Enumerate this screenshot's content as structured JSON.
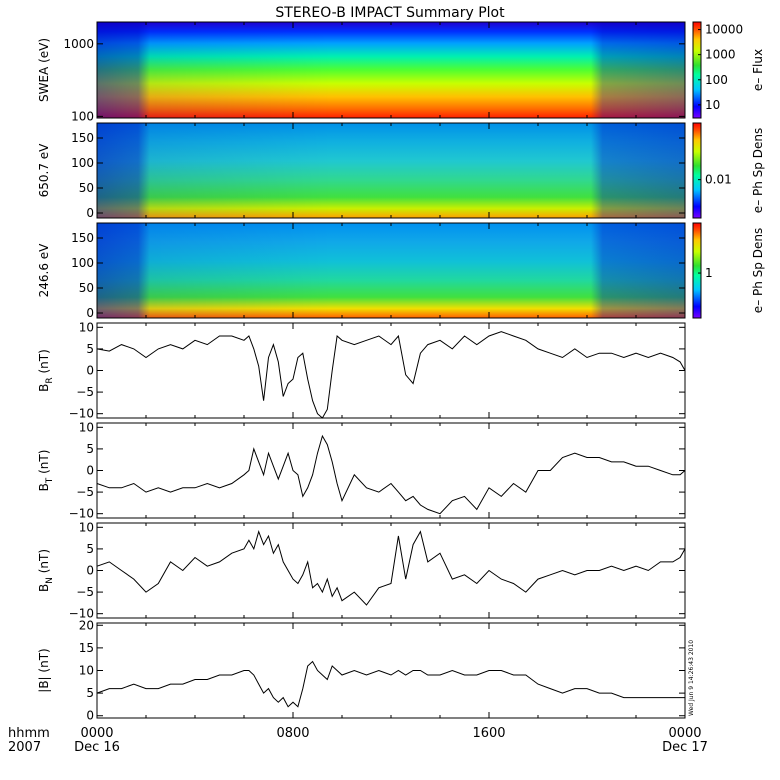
{
  "title": "STEREO-B IMPACT Summary Plot",
  "timestamp": "Wed Jun  9 14:26:43 2010",
  "x_axis": {
    "row1_label": "hhmm",
    "row2_label": "2007",
    "ticks": [
      {
        "hour": 0,
        "label": "0000",
        "sublabel": "Dec 16"
      },
      {
        "hour": 8,
        "label": "0800",
        "sublabel": ""
      },
      {
        "hour": 16,
        "label": "1600",
        "sublabel": ""
      },
      {
        "hour": 24,
        "label": "0000",
        "sublabel": "Dec 17"
      }
    ],
    "xlim": [
      0,
      24
    ]
  },
  "colors": {
    "line": "#000000",
    "axis": "#000000",
    "spectrogram_low": "#0000ff",
    "spectrogram_high": "#ff0000"
  },
  "chart_data": [
    {
      "type": "heatmap",
      "ylabel": "SWEA (eV)",
      "yscale": "log",
      "ylim": [
        95,
        2000
      ],
      "yticks": [
        {
          "value": 100,
          "label": "100"
        },
        {
          "value": 1000,
          "label": "1000"
        }
      ],
      "colorbar": {
        "label": "e– Flux",
        "scale": "log",
        "range": [
          3,
          20000
        ],
        "ticks": [
          {
            "value": 10,
            "label": "10"
          },
          {
            "value": 100,
            "label": "100"
          },
          {
            "value": 1000,
            "label": "1000"
          },
          {
            "value": 10000,
            "label": "10000"
          }
        ]
      }
    },
    {
      "type": "heatmap",
      "ylabel": "650.7 eV",
      "ylim": [
        -10,
        180
      ],
      "yticks": [
        {
          "value": 0,
          "label": "0"
        },
        {
          "value": 50,
          "label": "50"
        },
        {
          "value": 100,
          "label": "100"
        },
        {
          "value": 150,
          "label": "150"
        }
      ],
      "colorbar": {
        "label": "e– Ph Sp Dens",
        "scale": "log",
        "range": [
          0.001,
          0.3
        ],
        "ticks": [
          {
            "value": 0.01,
            "label": "0.01"
          }
        ]
      }
    },
    {
      "type": "heatmap",
      "ylabel": "246.6 eV",
      "ylim": [
        -10,
        180
      ],
      "yticks": [
        {
          "value": 0,
          "label": "0"
        },
        {
          "value": 50,
          "label": "50"
        },
        {
          "value": 100,
          "label": "100"
        },
        {
          "value": 150,
          "label": "150"
        }
      ],
      "colorbar": {
        "label": "e– Ph Sp Dens",
        "scale": "log",
        "range": [
          0.2,
          6
        ],
        "ticks": [
          {
            "value": 1,
            "label": "1"
          }
        ]
      }
    },
    {
      "type": "line",
      "ylabel": "B",
      "ylabel_sub": "R",
      "ylabel_unit": "(nT)",
      "ylim": [
        -11,
        11
      ],
      "yticks": [
        {
          "value": -10,
          "label": "−10"
        },
        {
          "value": -5,
          "label": "−5"
        },
        {
          "value": 0,
          "label": "0"
        },
        {
          "value": 5,
          "label": "5"
        },
        {
          "value": 10,
          "label": "10"
        }
      ],
      "x": [
        0,
        0.5,
        1,
        1.5,
        2,
        2.5,
        3,
        3.5,
        4,
        4.5,
        5,
        5.5,
        6,
        6.2,
        6.4,
        6.6,
        6.8,
        7.0,
        7.2,
        7.4,
        7.6,
        7.8,
        8.0,
        8.2,
        8.4,
        8.6,
        8.8,
        9.0,
        9.2,
        9.4,
        9.6,
        9.8,
        10,
        10.5,
        11,
        11.5,
        12,
        12.3,
        12.6,
        12.9,
        13.2,
        13.5,
        14,
        14.5,
        15,
        15.5,
        16,
        16.5,
        17,
        17.5,
        18,
        18.5,
        19,
        19.5,
        20,
        20.5,
        21,
        21.5,
        22,
        22.5,
        23,
        23.5,
        23.8,
        24
      ],
      "y": [
        5,
        4.5,
        6,
        5,
        3,
        5,
        6,
        5,
        7,
        6,
        8,
        8,
        7,
        8,
        5,
        1,
        -7,
        3,
        6,
        2,
        -6,
        -3,
        -2,
        3,
        4,
        -2,
        -7,
        -10,
        -11,
        -9,
        0,
        8,
        7,
        6,
        7,
        8,
        6,
        8,
        -1,
        -3,
        4,
        6,
        7,
        5,
        8,
        6,
        8,
        9,
        8,
        7,
        5,
        4,
        3,
        5,
        3,
        4,
        4,
        3,
        4,
        3,
        4,
        3,
        2,
        0
      ]
    },
    {
      "type": "line",
      "ylabel": "B",
      "ylabel_sub": "T",
      "ylabel_unit": "(nT)",
      "ylim": [
        -11,
        11
      ],
      "yticks": [
        {
          "value": -10,
          "label": "−10"
        },
        {
          "value": -5,
          "label": "−5"
        },
        {
          "value": 0,
          "label": "0"
        },
        {
          "value": 5,
          "label": "5"
        },
        {
          "value": 10,
          "label": "10"
        }
      ],
      "x": [
        0,
        0.5,
        1,
        1.5,
        2,
        2.5,
        3,
        3.5,
        4,
        4.5,
        5,
        5.5,
        6,
        6.2,
        6.4,
        6.6,
        6.8,
        7.0,
        7.2,
        7.4,
        7.6,
        7.8,
        8.0,
        8.2,
        8.4,
        8.6,
        8.8,
        9.0,
        9.2,
        9.4,
        9.6,
        9.8,
        10,
        10.5,
        11,
        11.5,
        12,
        12.3,
        12.6,
        12.9,
        13.2,
        13.5,
        14,
        14.5,
        15,
        15.5,
        16,
        16.5,
        17,
        17.5,
        18,
        18.5,
        19,
        19.5,
        20,
        20.5,
        21,
        21.5,
        22,
        22.5,
        23,
        23.5,
        23.8,
        24
      ],
      "y": [
        -3,
        -4,
        -4,
        -3,
        -5,
        -4,
        -5,
        -4,
        -4,
        -3,
        -4,
        -3,
        -1,
        0,
        5,
        2,
        -1,
        4,
        1,
        -2,
        1,
        4,
        0,
        -1,
        -6,
        -4,
        -1,
        4,
        8,
        6,
        2,
        -3,
        -7,
        -1,
        -4,
        -5,
        -3,
        -5,
        -7,
        -6,
        -8,
        -9,
        -10,
        -7,
        -6,
        -9,
        -4,
        -6,
        -3,
        -5,
        0,
        0,
        3,
        4,
        3,
        3,
        2,
        2,
        1,
        1,
        0,
        -1,
        -1,
        0
      ]
    },
    {
      "type": "line",
      "ylabel": "B",
      "ylabel_sub": "N",
      "ylabel_unit": "(nT)",
      "ylim": [
        -11,
        11
      ],
      "yticks": [
        {
          "value": -10,
          "label": "−10"
        },
        {
          "value": -5,
          "label": "−5"
        },
        {
          "value": 0,
          "label": "0"
        },
        {
          "value": 5,
          "label": "5"
        },
        {
          "value": 10,
          "label": "10"
        }
      ],
      "x": [
        0,
        0.5,
        1,
        1.5,
        2,
        2.5,
        3,
        3.5,
        4,
        4.5,
        5,
        5.5,
        6,
        6.2,
        6.4,
        6.6,
        6.8,
        7.0,
        7.2,
        7.4,
        7.6,
        7.8,
        8.0,
        8.2,
        8.4,
        8.6,
        8.8,
        9.0,
        9.2,
        9.4,
        9.6,
        9.8,
        10,
        10.5,
        11,
        11.5,
        12,
        12.3,
        12.6,
        12.9,
        13.2,
        13.5,
        14,
        14.5,
        15,
        15.5,
        16,
        16.5,
        17,
        17.5,
        18,
        18.5,
        19,
        19.5,
        20,
        20.5,
        21,
        21.5,
        22,
        22.5,
        23,
        23.5,
        23.8,
        24
      ],
      "y": [
        1,
        2,
        0,
        -2,
        -5,
        -3,
        2,
        0,
        3,
        1,
        2,
        4,
        5,
        7,
        5,
        9,
        6,
        8,
        4,
        6,
        2,
        0,
        -2,
        -3,
        -1,
        2,
        -4,
        -3,
        -5,
        -2,
        -6,
        -4,
        -7,
        -5,
        -8,
        -4,
        -3,
        8,
        -2,
        6,
        9,
        2,
        4,
        -2,
        -1,
        -3,
        0,
        -2,
        -3,
        -5,
        -2,
        -1,
        0,
        -1,
        0,
        0,
        1,
        0,
        1,
        0,
        2,
        2,
        3,
        5
      ]
    },
    {
      "type": "line",
      "ylabel": "|B|",
      "ylabel_sub": "",
      "ylabel_unit": "(nT)",
      "ylim": [
        -0.5,
        20.5
      ],
      "yticks": [
        {
          "value": 0,
          "label": "0"
        },
        {
          "value": 5,
          "label": "5"
        },
        {
          "value": 10,
          "label": "10"
        },
        {
          "value": 15,
          "label": "15"
        },
        {
          "value": 20,
          "label": "20"
        }
      ],
      "x": [
        0,
        0.5,
        1,
        1.5,
        2,
        2.5,
        3,
        3.5,
        4,
        4.5,
        5,
        5.5,
        6,
        6.2,
        6.4,
        6.6,
        6.8,
        7.0,
        7.2,
        7.4,
        7.6,
        7.8,
        8.0,
        8.2,
        8.4,
        8.6,
        8.8,
        9.0,
        9.2,
        9.4,
        9.6,
        9.8,
        10,
        10.5,
        11,
        11.5,
        12,
        12.3,
        12.6,
        12.9,
        13.2,
        13.5,
        14,
        14.5,
        15,
        15.5,
        16,
        16.5,
        17,
        17.5,
        18,
        18.5,
        19,
        19.5,
        20,
        20.5,
        21,
        21.5,
        22,
        22.5,
        23,
        23.5,
        23.8,
        24
      ],
      "y": [
        5,
        6,
        6,
        7,
        6,
        6,
        7,
        7,
        8,
        8,
        9,
        9,
        10,
        10,
        9,
        7,
        5,
        6,
        4,
        3,
        4,
        2,
        3,
        2,
        6,
        11,
        12,
        10,
        9,
        8,
        11,
        10,
        9,
        10,
        9,
        10,
        9,
        10,
        9,
        10,
        10,
        9,
        9,
        10,
        9,
        9,
        10,
        10,
        9,
        9,
        7,
        6,
        5,
        6,
        6,
        5,
        5,
        4,
        4,
        4,
        4,
        4,
        4,
        4
      ]
    }
  ]
}
